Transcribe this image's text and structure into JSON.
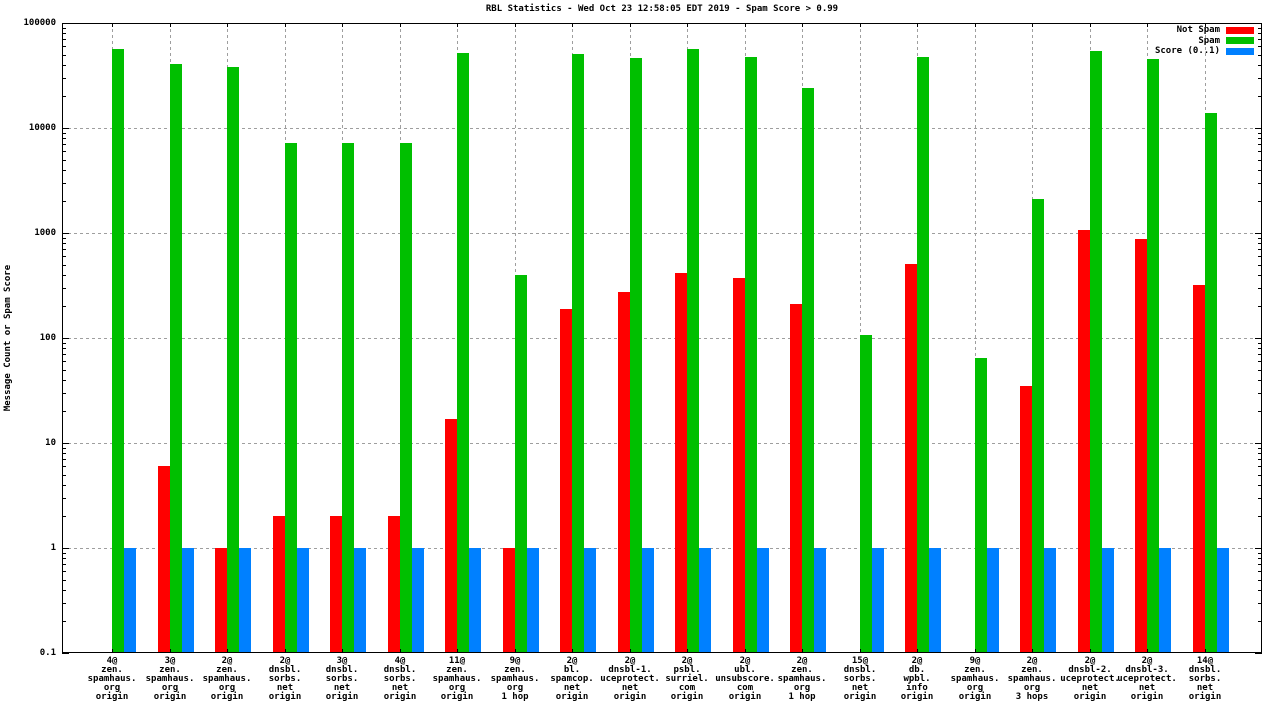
{
  "title": "RBL Statistics - Wed Oct 23 12:58:05 EDT 2019 - Spam Score > 0.99",
  "chart_data": {
    "type": "bar",
    "title": "RBL Statistics - Wed Oct 23 12:58:05 EDT 2019 - Spam Score > 0.99",
    "xlabel": "",
    "ylabel": "Message Count or Spam Score",
    "yscale": "log",
    "ylim": [
      0.1,
      100000
    ],
    "ytick_labels": [
      "100000",
      "10000",
      "1000",
      "100",
      "10",
      "1",
      "0.1"
    ],
    "grid": true,
    "legend_position": "top-right",
    "categories": [
      [
        "4@",
        "zen.",
        "spamhaus.",
        "org",
        "origin"
      ],
      [
        "3@",
        "zen.",
        "spamhaus.",
        "org",
        "origin"
      ],
      [
        "2@",
        "zen.",
        "spamhaus.",
        "org",
        "origin"
      ],
      [
        "2@",
        "dnsbl.",
        "sorbs.",
        "net",
        "origin"
      ],
      [
        "3@",
        "dnsbl.",
        "sorbs.",
        "net",
        "origin"
      ],
      [
        "4@",
        "dnsbl.",
        "sorbs.",
        "net",
        "origin"
      ],
      [
        "11@",
        "zen.",
        "spamhaus.",
        "org",
        "origin"
      ],
      [
        "9@",
        "zen.",
        "spamhaus.",
        "org",
        "1 hop"
      ],
      [
        "2@",
        "bl.",
        "spamcop.",
        "net",
        "origin"
      ],
      [
        "2@",
        "dnsbl-1.",
        "uceprotect.",
        "net",
        "origin"
      ],
      [
        "2@",
        "psbl.",
        "surriel.",
        "com",
        "origin"
      ],
      [
        "2@",
        "ubl.",
        "unsubscore.",
        "com",
        "origin"
      ],
      [
        "2@",
        "zen.",
        "spamhaus.",
        "org",
        "1 hop"
      ],
      [
        "15@",
        "dnsbl.",
        "sorbs.",
        "net",
        "origin"
      ],
      [
        "2@",
        "db.",
        "wpbl.",
        "info",
        "origin"
      ],
      [
        "9@",
        "zen.",
        "spamhaus.",
        "org",
        "origin"
      ],
      [
        "2@",
        "zen.",
        "spamhaus.",
        "org",
        "3 hops"
      ],
      [
        "2@",
        "dnsbl-2.",
        "uceprotect.",
        "net",
        "origin"
      ],
      [
        "2@",
        "dnsbl-3.",
        "uceprotect.",
        "net",
        "origin"
      ],
      [
        "14@",
        "dnsbl.",
        "sorbs.",
        "net",
        "origin"
      ]
    ],
    "series": [
      {
        "name": "Not Spam",
        "key": "not-spam",
        "color": "#ff0000",
        "values": [
          0,
          6,
          1,
          2,
          2,
          2,
          17,
          1,
          190,
          275,
          420,
          375,
          210,
          0,
          510,
          0,
          35,
          1060,
          880,
          320
        ]
      },
      {
        "name": "Spam",
        "key": "spam",
        "color": "#00bf00",
        "values": [
          57000,
          41000,
          38000,
          7200,
          7200,
          7200,
          52000,
          400,
          51000,
          46000,
          56000,
          48000,
          24000,
          108,
          47000,
          65,
          2100,
          54000,
          45000,
          14000
        ]
      },
      {
        "name": "Score (0..1)",
        "key": "score",
        "color": "#0080ff",
        "values": [
          1,
          1,
          1,
          1,
          1,
          1,
          1,
          1,
          1,
          1,
          1,
          1,
          1,
          1,
          1,
          1,
          1,
          1,
          1,
          1
        ]
      }
    ]
  }
}
